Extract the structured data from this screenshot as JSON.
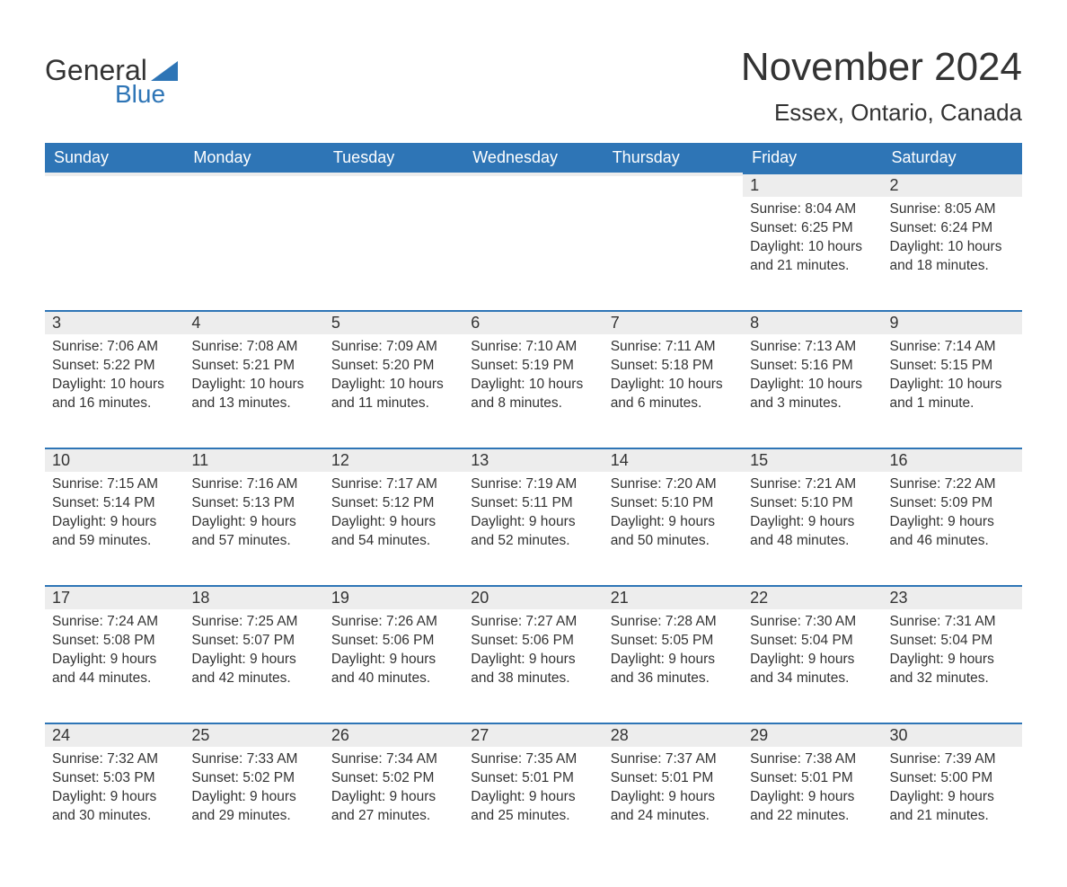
{
  "logo": {
    "text_top": "General",
    "text_bottom": "Blue",
    "accent_color": "#2e75b6"
  },
  "title": "November 2024",
  "location": "Essex, Ontario, Canada",
  "colors": {
    "header_bg": "#2e75b6",
    "header_text": "#ffffff",
    "daynum_bg": "#ededed",
    "daynum_border": "#2e75b6",
    "body_text": "#333333",
    "page_bg": "#ffffff"
  },
  "day_headers": [
    "Sunday",
    "Monday",
    "Tuesday",
    "Wednesday",
    "Thursday",
    "Friday",
    "Saturday"
  ],
  "weeks": [
    [
      {
        "n": "",
        "sr": "",
        "ss": "",
        "dl": ""
      },
      {
        "n": "",
        "sr": "",
        "ss": "",
        "dl": ""
      },
      {
        "n": "",
        "sr": "",
        "ss": "",
        "dl": ""
      },
      {
        "n": "",
        "sr": "",
        "ss": "",
        "dl": ""
      },
      {
        "n": "",
        "sr": "",
        "ss": "",
        "dl": ""
      },
      {
        "n": "1",
        "sr": "Sunrise: 8:04 AM",
        "ss": "Sunset: 6:25 PM",
        "dl": "Daylight: 10 hours and 21 minutes."
      },
      {
        "n": "2",
        "sr": "Sunrise: 8:05 AM",
        "ss": "Sunset: 6:24 PM",
        "dl": "Daylight: 10 hours and 18 minutes."
      }
    ],
    [
      {
        "n": "3",
        "sr": "Sunrise: 7:06 AM",
        "ss": "Sunset: 5:22 PM",
        "dl": "Daylight: 10 hours and 16 minutes."
      },
      {
        "n": "4",
        "sr": "Sunrise: 7:08 AM",
        "ss": "Sunset: 5:21 PM",
        "dl": "Daylight: 10 hours and 13 minutes."
      },
      {
        "n": "5",
        "sr": "Sunrise: 7:09 AM",
        "ss": "Sunset: 5:20 PM",
        "dl": "Daylight: 10 hours and 11 minutes."
      },
      {
        "n": "6",
        "sr": "Sunrise: 7:10 AM",
        "ss": "Sunset: 5:19 PM",
        "dl": "Daylight: 10 hours and 8 minutes."
      },
      {
        "n": "7",
        "sr": "Sunrise: 7:11 AM",
        "ss": "Sunset: 5:18 PM",
        "dl": "Daylight: 10 hours and 6 minutes."
      },
      {
        "n": "8",
        "sr": "Sunrise: 7:13 AM",
        "ss": "Sunset: 5:16 PM",
        "dl": "Daylight: 10 hours and 3 minutes."
      },
      {
        "n": "9",
        "sr": "Sunrise: 7:14 AM",
        "ss": "Sunset: 5:15 PM",
        "dl": "Daylight: 10 hours and 1 minute."
      }
    ],
    [
      {
        "n": "10",
        "sr": "Sunrise: 7:15 AM",
        "ss": "Sunset: 5:14 PM",
        "dl": "Daylight: 9 hours and 59 minutes."
      },
      {
        "n": "11",
        "sr": "Sunrise: 7:16 AM",
        "ss": "Sunset: 5:13 PM",
        "dl": "Daylight: 9 hours and 57 minutes."
      },
      {
        "n": "12",
        "sr": "Sunrise: 7:17 AM",
        "ss": "Sunset: 5:12 PM",
        "dl": "Daylight: 9 hours and 54 minutes."
      },
      {
        "n": "13",
        "sr": "Sunrise: 7:19 AM",
        "ss": "Sunset: 5:11 PM",
        "dl": "Daylight: 9 hours and 52 minutes."
      },
      {
        "n": "14",
        "sr": "Sunrise: 7:20 AM",
        "ss": "Sunset: 5:10 PM",
        "dl": "Daylight: 9 hours and 50 minutes."
      },
      {
        "n": "15",
        "sr": "Sunrise: 7:21 AM",
        "ss": "Sunset: 5:10 PM",
        "dl": "Daylight: 9 hours and 48 minutes."
      },
      {
        "n": "16",
        "sr": "Sunrise: 7:22 AM",
        "ss": "Sunset: 5:09 PM",
        "dl": "Daylight: 9 hours and 46 minutes."
      }
    ],
    [
      {
        "n": "17",
        "sr": "Sunrise: 7:24 AM",
        "ss": "Sunset: 5:08 PM",
        "dl": "Daylight: 9 hours and 44 minutes."
      },
      {
        "n": "18",
        "sr": "Sunrise: 7:25 AM",
        "ss": "Sunset: 5:07 PM",
        "dl": "Daylight: 9 hours and 42 minutes."
      },
      {
        "n": "19",
        "sr": "Sunrise: 7:26 AM",
        "ss": "Sunset: 5:06 PM",
        "dl": "Daylight: 9 hours and 40 minutes."
      },
      {
        "n": "20",
        "sr": "Sunrise: 7:27 AM",
        "ss": "Sunset: 5:06 PM",
        "dl": "Daylight: 9 hours and 38 minutes."
      },
      {
        "n": "21",
        "sr": "Sunrise: 7:28 AM",
        "ss": "Sunset: 5:05 PM",
        "dl": "Daylight: 9 hours and 36 minutes."
      },
      {
        "n": "22",
        "sr": "Sunrise: 7:30 AM",
        "ss": "Sunset: 5:04 PM",
        "dl": "Daylight: 9 hours and 34 minutes."
      },
      {
        "n": "23",
        "sr": "Sunrise: 7:31 AM",
        "ss": "Sunset: 5:04 PM",
        "dl": "Daylight: 9 hours and 32 minutes."
      }
    ],
    [
      {
        "n": "24",
        "sr": "Sunrise: 7:32 AM",
        "ss": "Sunset: 5:03 PM",
        "dl": "Daylight: 9 hours and 30 minutes."
      },
      {
        "n": "25",
        "sr": "Sunrise: 7:33 AM",
        "ss": "Sunset: 5:02 PM",
        "dl": "Daylight: 9 hours and 29 minutes."
      },
      {
        "n": "26",
        "sr": "Sunrise: 7:34 AM",
        "ss": "Sunset: 5:02 PM",
        "dl": "Daylight: 9 hours and 27 minutes."
      },
      {
        "n": "27",
        "sr": "Sunrise: 7:35 AM",
        "ss": "Sunset: 5:01 PM",
        "dl": "Daylight: 9 hours and 25 minutes."
      },
      {
        "n": "28",
        "sr": "Sunrise: 7:37 AM",
        "ss": "Sunset: 5:01 PM",
        "dl": "Daylight: 9 hours and 24 minutes."
      },
      {
        "n": "29",
        "sr": "Sunrise: 7:38 AM",
        "ss": "Sunset: 5:01 PM",
        "dl": "Daylight: 9 hours and 22 minutes."
      },
      {
        "n": "30",
        "sr": "Sunrise: 7:39 AM",
        "ss": "Sunset: 5:00 PM",
        "dl": "Daylight: 9 hours and 21 minutes."
      }
    ]
  ]
}
